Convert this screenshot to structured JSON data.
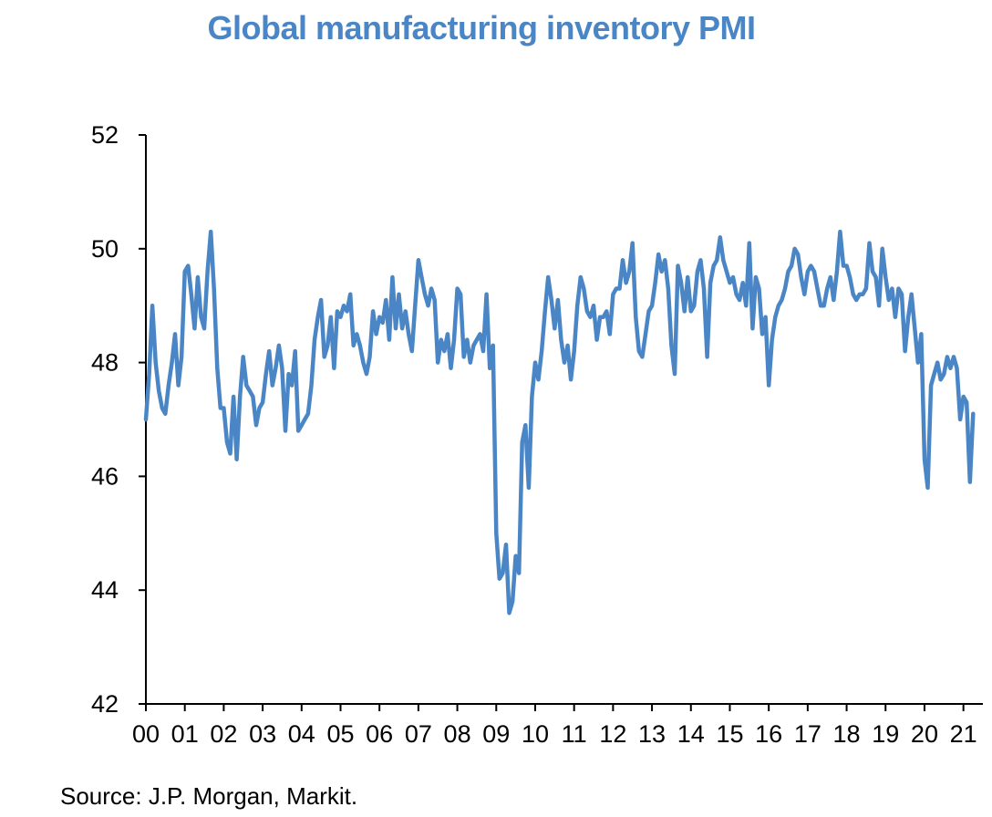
{
  "chart_data": {
    "type": "line",
    "title": "Global manufacturing inventory PMI",
    "xlabel": "",
    "ylabel": "",
    "source": "Source: J.P. Morgan, Markit.",
    "ylim": [
      42,
      52
    ],
    "yticks": [
      "42",
      "44",
      "46",
      "48",
      "50",
      "52"
    ],
    "xticks": [
      "00",
      "01",
      "02",
      "03",
      "04",
      "05",
      "06",
      "07",
      "08",
      "09",
      "10",
      "11",
      "12",
      "13",
      "14",
      "15",
      "16",
      "17",
      "18",
      "19",
      "20",
      "21"
    ],
    "grid": false,
    "legend": "none",
    "line_color": "#4a86c5",
    "series": [
      {
        "x_start_year": 2000,
        "frequency": "monthly",
        "values": [
          47.0,
          47.8,
          49.0,
          48.0,
          47.5,
          47.2,
          47.1,
          47.6,
          48.0,
          48.5,
          47.6,
          48.1,
          49.6,
          49.7,
          49.2,
          48.6,
          49.5,
          48.8,
          48.6,
          49.6,
          50.3,
          49.3,
          47.9,
          47.2,
          47.2,
          46.6,
          46.4,
          47.4,
          46.3,
          47.4,
          48.1,
          47.6,
          47.5,
          47.4,
          46.9,
          47.2,
          47.3,
          47.8,
          48.2,
          47.6,
          47.9,
          48.3,
          47.9,
          46.8,
          47.8,
          47.6,
          48.2,
          46.8,
          46.9,
          47.0,
          47.1,
          47.6,
          48.4,
          48.8,
          49.1,
          48.1,
          48.3,
          48.8,
          47.9,
          48.9,
          48.8,
          49.0,
          48.9,
          49.2,
          48.3,
          48.5,
          48.3,
          48.0,
          47.8,
          48.1,
          48.9,
          48.5,
          48.8,
          48.7,
          49.1,
          48.4,
          49.5,
          48.6,
          49.2,
          48.6,
          48.9,
          48.5,
          48.2,
          49.0,
          49.8,
          49.5,
          49.2,
          49.0,
          49.3,
          49.1,
          48.0,
          48.4,
          48.2,
          48.5,
          47.9,
          48.4,
          49.3,
          49.2,
          48.1,
          48.4,
          48.0,
          48.3,
          48.4,
          48.5,
          48.2,
          49.2,
          47.9,
          48.3,
          45.0,
          44.2,
          44.3,
          44.8,
          43.6,
          43.8,
          44.6,
          44.3,
          46.6,
          46.9,
          45.8,
          47.4,
          48.0,
          47.7,
          48.2,
          48.9,
          49.5,
          49.1,
          48.6,
          49.1,
          48.4,
          48.0,
          48.3,
          47.7,
          48.2,
          49.0,
          49.5,
          49.3,
          48.9,
          48.8,
          49.0,
          48.4,
          48.8,
          48.8,
          48.9,
          48.5,
          49.2,
          49.3,
          49.3,
          49.8,
          49.4,
          49.6,
          50.1,
          48.8,
          48.2,
          48.1,
          48.5,
          48.9,
          49.0,
          49.4,
          49.9,
          49.6,
          49.8,
          49.3,
          48.3,
          47.8,
          49.7,
          49.4,
          48.9,
          49.5,
          48.9,
          49.0,
          49.6,
          49.8,
          49.3,
          48.1,
          49.4,
          49.7,
          49.8,
          50.2,
          49.8,
          49.6,
          49.4,
          49.5,
          49.2,
          49.1,
          49.4,
          49.0,
          50.1,
          48.6,
          49.5,
          49.3,
          48.5,
          48.8,
          47.6,
          48.4,
          48.8,
          49.0,
          49.1,
          49.3,
          49.6,
          49.7,
          50.0,
          49.9,
          49.5,
          49.2,
          49.6,
          49.7,
          49.6,
          49.3,
          49.0,
          49.0,
          49.3,
          49.5,
          49.1,
          49.6,
          50.3,
          49.7,
          49.7,
          49.5,
          49.2,
          49.1,
          49.2,
          49.2,
          49.3,
          50.1,
          49.6,
          49.5,
          49.0,
          50.0,
          49.5,
          49.1,
          49.3,
          48.8,
          49.3,
          49.2,
          48.2,
          48.8,
          49.2,
          48.6,
          48.0,
          48.5,
          46.3,
          45.8,
          47.6,
          47.8,
          48.0,
          47.7,
          47.8,
          48.1,
          47.9,
          48.1,
          47.9,
          47.0,
          47.4,
          47.3,
          45.9,
          47.1
        ]
      }
    ]
  }
}
